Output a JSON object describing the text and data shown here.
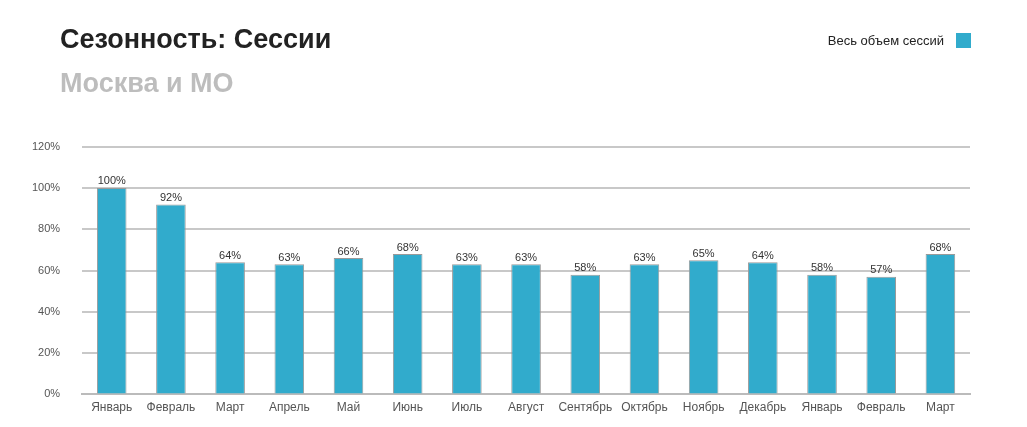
{
  "chart_data": {
    "type": "bar",
    "title": "Сезонность: Сессии",
    "subtitle": "Москва и МО",
    "categories": [
      "Январь",
      "Февраль",
      "Март",
      "Апрель",
      "Май",
      "Июнь",
      "Июль",
      "Август",
      "Сентябрь",
      "Октябрь",
      "Ноябрь",
      "Декабрь",
      "Январь",
      "Февраль",
      "Март"
    ],
    "series": [
      {
        "name": "Весь объем сессий",
        "color": "#31abcc",
        "values": [
          100,
          92,
          64,
          63,
          66,
          68,
          63,
          63,
          58,
          63,
          65,
          64,
          58,
          57,
          68
        ],
        "value_labels": [
          "100%",
          "92%",
          "64%",
          "63%",
          "66%",
          "68%",
          "63%",
          "63%",
          "58%",
          "63%",
          "65%",
          "64%",
          "58%",
          "57%",
          "68%"
        ]
      }
    ],
    "ylim": [
      0,
      120
    ],
    "yticks": [
      {
        "value": 0,
        "label": "0%"
      },
      {
        "value": 20,
        "label": "20%"
      },
      {
        "value": 40,
        "label": "40%"
      },
      {
        "value": 60,
        "label": "60%"
      },
      {
        "value": 80,
        "label": "80%"
      },
      {
        "value": 100,
        "label": "100%"
      },
      {
        "value": 120,
        "label": "120%"
      }
    ],
    "grid": "y",
    "legend": "top right"
  }
}
